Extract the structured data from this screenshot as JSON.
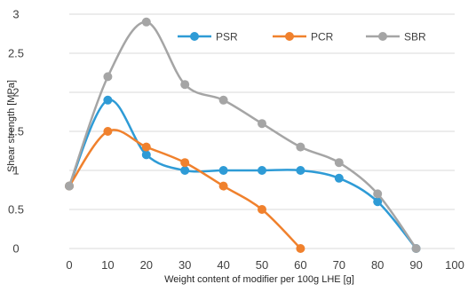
{
  "chart_data": {
    "type": "line",
    "smooth": true,
    "title": "",
    "xlabel": "Weight content of modifier per 100g LHE [g]",
    "ylabel": "Shear strength [MPa]",
    "xlim": [
      0,
      100
    ],
    "ylim": [
      0,
      3
    ],
    "x_ticks": [
      "0",
      "10",
      "20",
      "30",
      "40",
      "50",
      "60",
      "70",
      "80",
      "90",
      "100"
    ],
    "y_ticks": [
      "0",
      "0.5",
      "1",
      "1.5",
      "2",
      "2.5",
      "3"
    ],
    "grid": "horizontal",
    "legend_position": "top-right",
    "series": [
      {
        "name": "PSR",
        "color": "#2E9BD6",
        "x": [
          0,
          10,
          20,
          30,
          40,
          50,
          60,
          70,
          80,
          90
        ],
        "values": [
          0.8,
          1.9,
          1.2,
          1.0,
          1.0,
          1.0,
          1.0,
          0.9,
          0.6,
          0.0
        ]
      },
      {
        "name": "PCR",
        "color": "#F0812D",
        "x": [
          0,
          10,
          20,
          30,
          40,
          50,
          60
        ],
        "values": [
          0.8,
          1.5,
          1.3,
          1.1,
          0.8,
          0.5,
          0.0
        ]
      },
      {
        "name": "SBR",
        "color": "#A5A5A5",
        "x": [
          0,
          10,
          20,
          30,
          40,
          50,
          60,
          70,
          80,
          90
        ],
        "values": [
          0.8,
          2.2,
          2.9,
          2.1,
          1.9,
          1.6,
          1.3,
          1.1,
          0.7,
          0.0
        ]
      }
    ]
  }
}
